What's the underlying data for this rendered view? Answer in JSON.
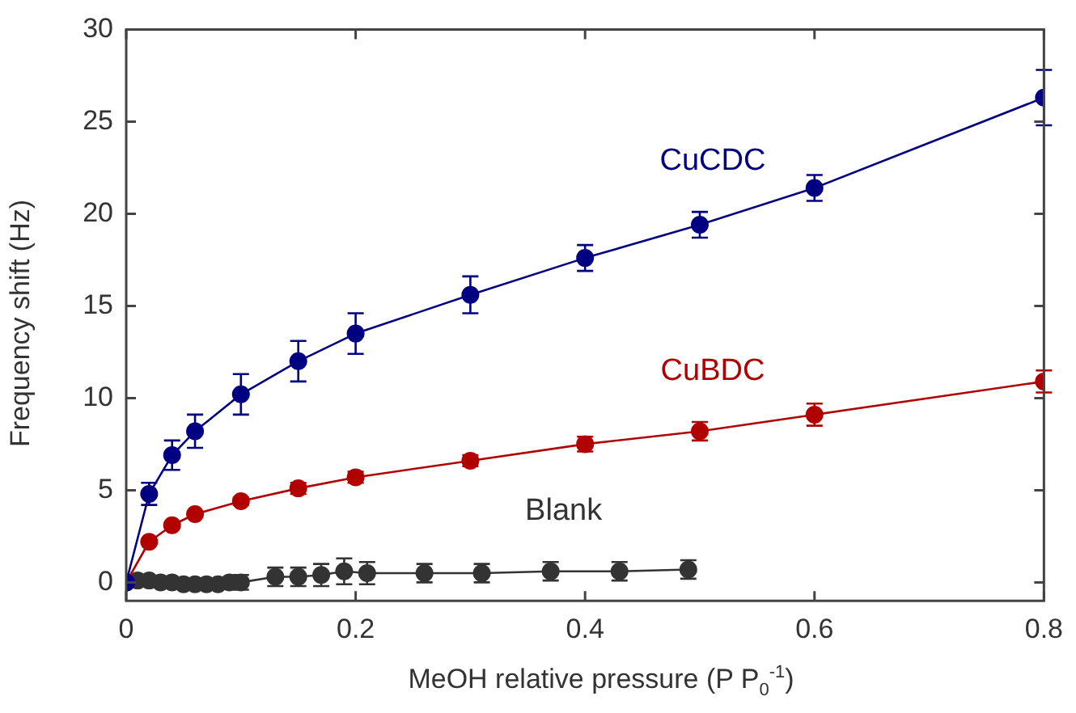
{
  "chart_data": {
    "type": "line",
    "xlabel": "MeOH relative pressure (P P$_{0}$$^{-1}$)",
    "ylabel": "Frequency shift (Hz)",
    "xlim": [
      0,
      0.8
    ],
    "xticks": [
      0,
      0.2,
      0.4,
      0.6,
      0.8
    ],
    "ylim": [
      -1,
      30
    ],
    "yticks": [
      0,
      5,
      10,
      15,
      20,
      25,
      30
    ],
    "grid": false,
    "legend": false,
    "marker": "circle",
    "line_style": "solid",
    "series": [
      {
        "name": "CuCDC",
        "color": "#000080",
        "x": [
          0,
          0.02,
          0.04,
          0.06,
          0.1,
          0.15,
          0.2,
          0.3,
          0.4,
          0.5,
          0.6,
          0.8
        ],
        "values": [
          0,
          4.8,
          6.9,
          8.2,
          10.2,
          12.0,
          13.5,
          15.6,
          17.6,
          19.4,
          21.4,
          26.3
        ],
        "errors": [
          null,
          0.6,
          0.8,
          0.9,
          1.1,
          1.1,
          1.1,
          1.0,
          0.7,
          0.7,
          0.7,
          1.5
        ]
      },
      {
        "name": "CuBDC",
        "color": "#b00000",
        "x": [
          0,
          0.02,
          0.04,
          0.06,
          0.1,
          0.15,
          0.2,
          0.3,
          0.4,
          0.5,
          0.6,
          0.8
        ],
        "values": [
          0,
          2.2,
          3.1,
          3.7,
          4.4,
          5.1,
          5.7,
          6.6,
          7.5,
          8.2,
          9.1,
          10.9
        ],
        "errors": [
          null,
          null,
          null,
          null,
          0.2,
          0.3,
          0.3,
          0.3,
          0.4,
          0.5,
          0.6,
          0.6
        ]
      },
      {
        "name": "Blank",
        "color": "#333333",
        "x": [
          0,
          0.01,
          0.02,
          0.03,
          0.04,
          0.05,
          0.06,
          0.07,
          0.08,
          0.09,
          0.1,
          0.13,
          0.15,
          0.17,
          0.19,
          0.21,
          0.26,
          0.31,
          0.37,
          0.43,
          0.49
        ],
        "values": [
          0,
          0.1,
          0.1,
          0,
          0,
          -0.1,
          -0.1,
          -0.1,
          -0.1,
          0,
          0,
          0.3,
          0.3,
          0.4,
          0.6,
          0.5,
          0.5,
          0.5,
          0.6,
          0.6,
          0.7
        ],
        "errors": [
          null,
          null,
          null,
          null,
          null,
          null,
          null,
          null,
          null,
          null,
          0.4,
          0.5,
          0.5,
          0.6,
          0.7,
          0.6,
          0.5,
          0.5,
          0.5,
          0.5,
          0.5
        ]
      }
    ]
  }
}
